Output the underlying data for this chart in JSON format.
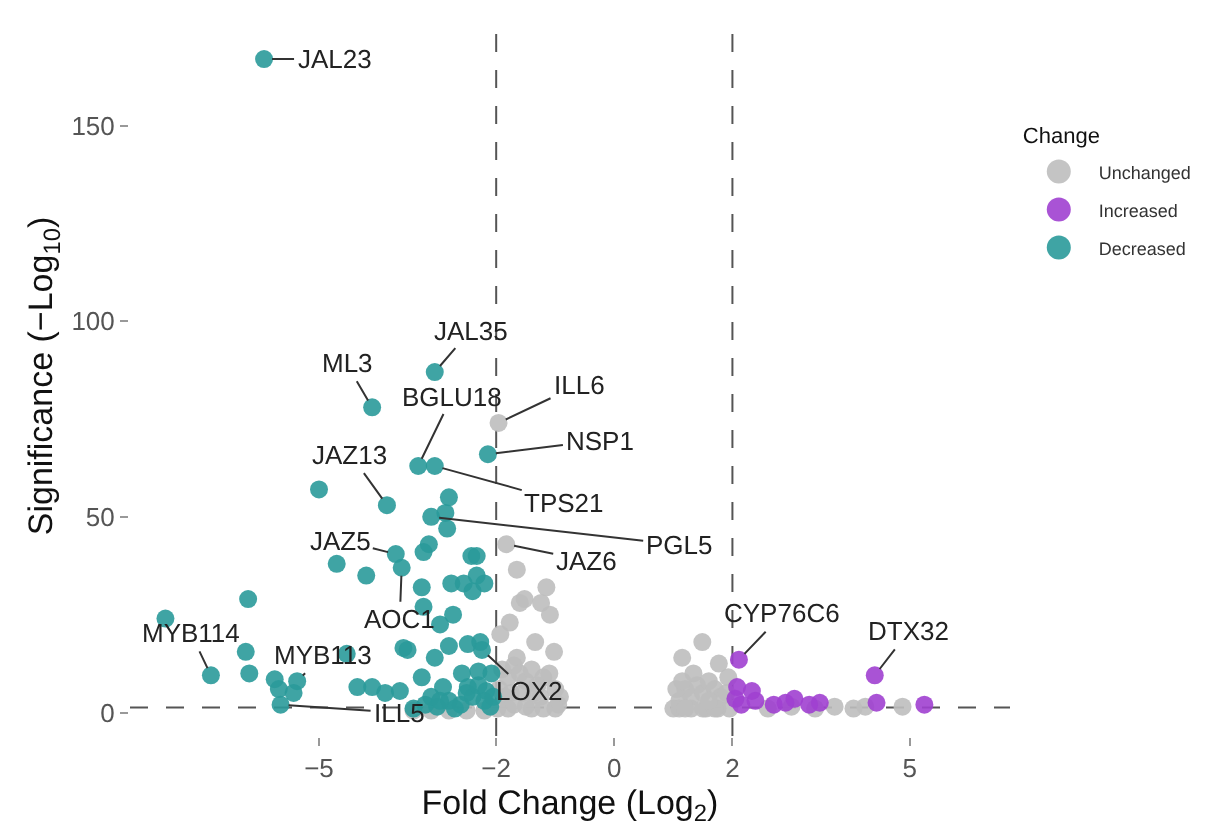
{
  "chart_data": {
    "type": "scatter",
    "xlabel": "Fold Change (Log$_{2}$)",
    "ylabel": "Significance (−Log$_{10}$)",
    "legend_title": "Change",
    "xlim": [
      -8.2,
      6.7
    ],
    "xticks": [
      -5,
      -2,
      0,
      2,
      5
    ],
    "ylim": [
      -6,
      178
    ],
    "yticks": [
      0,
      50,
      100,
      150
    ],
    "grid": false,
    "legend": "right",
    "marker": "circle",
    "series": [
      {
        "name": "Unchanged",
        "color": "#bebebe",
        "x": [
          -1.96,
          -1.83,
          -1.65,
          -1.52,
          -1.15,
          -1.09,
          -1.24,
          -1.6,
          -1.77,
          -1.93,
          -1.02,
          -1.34,
          -1.65,
          -1.9,
          -1.8,
          -1.7,
          -1.6,
          -1.5,
          -1.4,
          -1.3,
          -1.2,
          -1.1,
          -1.0,
          -0.92,
          -1.95,
          -1.85,
          -1.75,
          -1.55,
          -1.35,
          -1.25,
          -0.95,
          -1.7,
          -1.5,
          -1.0,
          -1.8,
          -1.4,
          -1.2,
          -1.98,
          -2.2,
          -2.5,
          -2.8,
          -3.1,
          -3.4,
          1.49,
          1.15,
          1.77,
          1.34,
          1.93,
          1.0,
          1.1,
          1.2,
          1.3,
          1.4,
          1.5,
          1.6,
          1.7,
          1.8,
          1.9,
          1.05,
          1.15,
          1.55,
          1.75,
          1.95,
          1.1,
          1.3,
          1.5,
          1.7,
          1.6,
          1.2,
          3.0,
          3.73,
          4.25,
          4.88,
          2.6,
          3.4,
          4.05
        ],
        "values": [
          74,
          43,
          36.5,
          29,
          32,
          25,
          28,
          28,
          23,
          20,
          15.5,
          18,
          14,
          11,
          9,
          12,
          10,
          8,
          11,
          7,
          9,
          10,
          6,
          4,
          6,
          4,
          5,
          5,
          5,
          4,
          2,
          2,
          1.5,
          1,
          1,
          1,
          1,
          1,
          0.5,
          0.5,
          0.5,
          0.5,
          0.5,
          18,
          14,
          12.5,
          10,
          9,
          1,
          3,
          6,
          4,
          7,
          5,
          8,
          6,
          4,
          5,
          6,
          8,
          1,
          1,
          1,
          1,
          1,
          1,
          1,
          3,
          1,
          1.5,
          1.5,
          1.5,
          1.5,
          1,
          1,
          1
        ]
      },
      {
        "name": "Increased",
        "color": "#a040d0",
        "x": [
          2.11,
          4.41,
          4.44,
          5.25,
          3.48,
          2.08,
          2.33,
          2.39,
          2.15,
          2.05,
          2.7,
          2.9,
          3.05,
          3.3
        ],
        "values": [
          13.5,
          9.5,
          2.5,
          2,
          2.5,
          6.5,
          5.5,
          3,
          2,
          3.5,
          2,
          2.5,
          3.5,
          2
        ]
      },
      {
        "name": "Decreased",
        "color": "#2a9a9a",
        "x": [
          -5.93,
          -3.04,
          -4.1,
          -2.14,
          -3.32,
          -3.04,
          -5.0,
          -3.85,
          -2.8,
          -3.1,
          -2.86,
          -2.83,
          -3.14,
          -3.23,
          -3.7,
          -3.6,
          -4.7,
          -4.2,
          -2.42,
          -2.33,
          -2.33,
          -2.55,
          -2.76,
          -2.4,
          -2.2,
          -3.26,
          -6.2,
          -7.6,
          -2.73,
          -2.95,
          -3.23,
          -6.24,
          -6.83,
          -6.18,
          -5.75,
          -5.37,
          -5.68,
          -5.43,
          -5.65,
          -4.53,
          -3.57,
          -3.5,
          -3.04,
          -3.26,
          -4.35,
          -4.1,
          -3.88,
          -3.63,
          -2.8,
          -2.48,
          -2.27,
          -2.58,
          -2.3,
          -2.08,
          -2.9,
          -2.48,
          -2.17,
          -2.24,
          -3.4,
          -3.2,
          -3.0,
          -2.8,
          -2.6,
          -2.4,
          -2.2,
          -2.1,
          -2.7,
          -2.5,
          -2.3,
          -2.05,
          -3.1,
          -2.95
        ],
        "values": [
          167,
          87,
          78,
          66,
          63,
          63,
          57,
          53,
          55,
          50,
          51,
          47,
          43,
          41,
          40.5,
          37,
          38,
          35,
          40,
          40,
          35,
          33,
          33,
          31,
          33,
          32,
          29,
          24,
          25,
          22.5,
          27,
          15.5,
          9.5,
          10,
          8.5,
          8,
          6,
          5,
          2,
          15,
          16.5,
          16,
          14,
          9,
          6.5,
          6.5,
          5,
          5.5,
          17,
          17.5,
          18,
          10,
          10.5,
          10,
          6.5,
          6.5,
          5.5,
          16,
          1,
          2,
          1.5,
          3,
          2,
          4,
          3,
          1.5,
          1,
          5,
          7,
          4,
          4,
          3
        ]
      }
    ],
    "ref_lines": [
      {
        "axis": "x",
        "value": -2,
        "line_style": "dashed",
        "color": "#555555"
      },
      {
        "axis": "x",
        "value": 2,
        "line_style": "dashed",
        "color": "#555555"
      },
      {
        "axis": "y",
        "value": 1.3,
        "line_style": "dashed",
        "color": "#555555"
      }
    ],
    "annotations": [
      {
        "text": "JAL23",
        "x": -5.93,
        "y": 167
      },
      {
        "text": "JAL35",
        "x": -3.04,
        "y": 87
      },
      {
        "text": "ML3",
        "x": -4.1,
        "y": 78
      },
      {
        "text": "BGLU18",
        "x": -3.32,
        "y": 63
      },
      {
        "text": "ILL6",
        "x": -1.96,
        "y": 74
      },
      {
        "text": "NSP1",
        "x": -2.14,
        "y": 66
      },
      {
        "text": "JAZ13",
        "x": -3.85,
        "y": 53
      },
      {
        "text": "TPS21",
        "x": -3.04,
        "y": 63
      },
      {
        "text": "PGL5",
        "x": -3.1,
        "y": 50
      },
      {
        "text": "JAZ6",
        "x": -1.83,
        "y": 43
      },
      {
        "text": "JAZ5",
        "x": -3.7,
        "y": 40.5
      },
      {
        "text": "AOC1",
        "x": -3.6,
        "y": 37
      },
      {
        "text": "MYB114",
        "x": -6.83,
        "y": 9.5
      },
      {
        "text": "MYB113",
        "x": -5.37,
        "y": 8
      },
      {
        "text": "ILL5",
        "x": -5.65,
        "y": 2
      },
      {
        "text": "LOX2",
        "x": -2.24,
        "y": 16
      },
      {
        "text": "CYP76C6",
        "x": 2.11,
        "y": 13.5
      },
      {
        "text": "DTX32",
        "x": 4.41,
        "y": 9.5
      }
    ]
  }
}
